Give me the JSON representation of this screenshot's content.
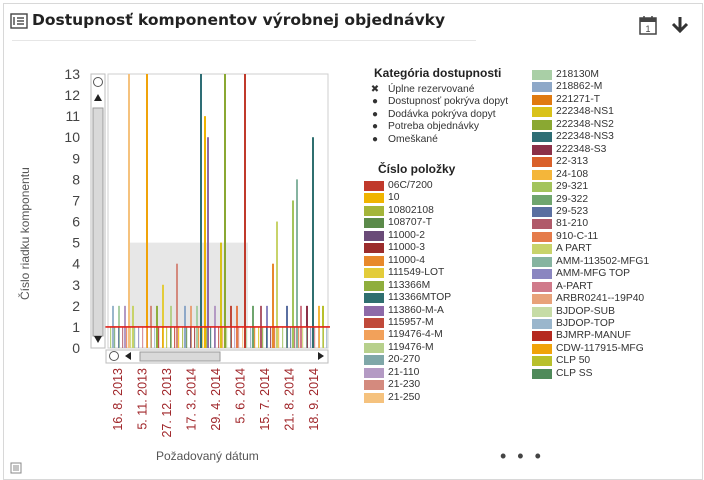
{
  "header": {
    "title": "Dostupnosť komponentov výrobnej objednávky",
    "icons": {
      "menu": "list-icon",
      "calendar": "calendar-icon",
      "download": "download-arrow-icon",
      "calendar_day": "1"
    }
  },
  "chart": {
    "ylabel": "Číslo riadku komponentu",
    "xlabel": "Požadovaný dátum",
    "more": "• • •"
  },
  "chart_data": {
    "type": "bar",
    "ylim": [
      0,
      13
    ],
    "yticks": [
      "0",
      "1",
      "2",
      "3",
      "4",
      "5",
      "6",
      "7",
      "8",
      "9",
      "10",
      "11",
      "12",
      "13"
    ],
    "xticks": [
      "16. 8. 2013",
      "5. 11. 2013",
      "27. 12. 2013",
      "17. 3. 2014",
      "29. 4. 2014",
      "5. 6. 2014",
      "15. 7. 2014",
      "21. 8. 2014",
      "18. 9. 2014"
    ],
    "grid": false,
    "legend_position": "right"
  },
  "legend": {
    "category_title": "Kategória dostupnosti",
    "categories": [
      {
        "mark": "✖",
        "label": "Úplne rezervované"
      },
      {
        "mark": "●",
        "label": "Dostupnosť pokrýva dopyt"
      },
      {
        "mark": "●",
        "label": "Dodávka pokrýva dopyt"
      },
      {
        "mark": "●",
        "label": "Potreba objednávky"
      },
      {
        "mark": "●",
        "label": "Omeškané"
      }
    ],
    "item_title": "Číslo položky",
    "items_left": [
      {
        "label": "06C/7200",
        "color": "#c0392b"
      },
      {
        "label": "10",
        "color": "#f0b400"
      },
      {
        "label": "10802108",
        "color": "#a4b53a"
      },
      {
        "label": "108707-T",
        "color": "#5b8a4a"
      },
      {
        "label": "11000-2",
        "color": "#6a4b78"
      },
      {
        "label": "11000-3",
        "color": "#9b2c2c"
      },
      {
        "label": "11000-4",
        "color": "#e8892b"
      },
      {
        "label": "111549-LOT",
        "color": "#e3cc3a"
      },
      {
        "label": "113366M",
        "color": "#8fae3d"
      },
      {
        "label": "113366MTOP",
        "color": "#2f6f6f"
      },
      {
        "label": "113860-M-A",
        "color": "#8e6aa8"
      },
      {
        "label": "115957-M",
        "color": "#c0493a"
      },
      {
        "label": "119476-4-M",
        "color": "#f2a15a"
      },
      {
        "label": "119476-M",
        "color": "#b7d08c"
      },
      {
        "label": "20-270",
        "color": "#7fa7a8"
      },
      {
        "label": "21-110",
        "color": "#b49ac4"
      },
      {
        "label": "21-230",
        "color": "#d48a7e"
      },
      {
        "label": "21-250",
        "color": "#f5c27e"
      }
    ],
    "items_right": [
      {
        "label": "218130M",
        "color": "#a9cfa6"
      },
      {
        "label": "218862-M",
        "color": "#8ea8c8"
      },
      {
        "label": "221271-T",
        "color": "#e07a10"
      },
      {
        "label": "222348-NS1",
        "color": "#d9c21a"
      },
      {
        "label": "222348-NS2",
        "color": "#8aa832"
      },
      {
        "label": "222348-NS3",
        "color": "#2e6e75"
      },
      {
        "label": "222348-S3",
        "color": "#8b3048"
      },
      {
        "label": "22-313",
        "color": "#d9602a"
      },
      {
        "label": "24-108",
        "color": "#f4b63a"
      },
      {
        "label": "29-321",
        "color": "#a3c45c"
      },
      {
        "label": "29-322",
        "color": "#6fa56e"
      },
      {
        "label": "29-523",
        "color": "#5a6fa0"
      },
      {
        "label": "81-210",
        "color": "#b05a6a"
      },
      {
        "label": "910-C-11",
        "color": "#e57b4a"
      },
      {
        "label": "A PART",
        "color": "#c8d36a"
      },
      {
        "label": "AMM-113502-MFG1",
        "color": "#86b4a0"
      },
      {
        "label": "AMM-MFG TOP",
        "color": "#8a86c0"
      },
      {
        "label": "A-PART",
        "color": "#d07a8a"
      },
      {
        "label": "ARBR0241--19P40",
        "color": "#e8a27a"
      },
      {
        "label": "BJDOP-SUB",
        "color": "#c6dca6"
      },
      {
        "label": "BJDOP-TOP",
        "color": "#9ab6cc"
      },
      {
        "label": "BJMRP-MANUF",
        "color": "#b5291f"
      },
      {
        "label": "CDW-117915-MFG",
        "color": "#f0a30a"
      },
      {
        "label": "CLP 50",
        "color": "#b8c02c"
      },
      {
        "label": "CLP SS",
        "color": "#4f8a5a"
      }
    ]
  }
}
